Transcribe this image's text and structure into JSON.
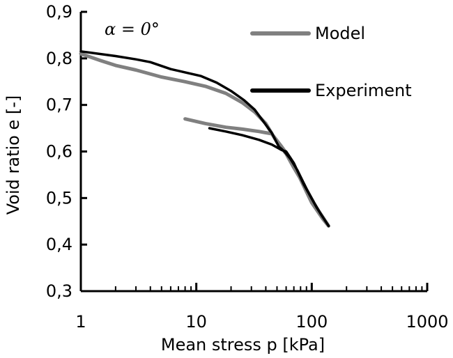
{
  "chart_data": {
    "type": "line",
    "xscale": "log",
    "xlim": [
      1,
      1000
    ],
    "ylim": [
      0.3,
      0.9
    ],
    "xlabel": "Mean stress p   [kPa]",
    "ylabel": "Void ratio  e    [-]",
    "x_ticks": [
      "1",
      "10",
      "100",
      "1000"
    ],
    "y_ticks": [
      "0,3",
      "0,4",
      "0,5",
      "0,6",
      "0,7",
      "0,8",
      "0,9"
    ],
    "annotation": "α = 0°",
    "legend_position": "top-right",
    "grid": false,
    "series": [
      {
        "name": "Model",
        "color": "#808080",
        "points": [
          [
            1,
            0.81
          ],
          [
            1.5,
            0.795
          ],
          [
            2,
            0.785
          ],
          [
            3,
            0.775
          ],
          [
            5,
            0.76
          ],
          [
            8,
            0.75
          ],
          [
            12,
            0.74
          ],
          [
            18,
            0.725
          ],
          [
            25,
            0.705
          ],
          [
            32,
            0.685
          ],
          [
            40,
            0.66
          ],
          [
            50,
            0.62
          ],
          [
            60,
            0.595
          ],
          [
            70,
            0.565
          ],
          [
            85,
            0.53
          ],
          [
            100,
            0.495
          ],
          [
            120,
            0.465
          ],
          [
            140,
            0.44
          ],
          [
            125,
            0.455
          ],
          [
            100,
            0.49
          ],
          [
            80,
            0.54
          ],
          [
            65,
            0.585
          ],
          [
            55,
            0.61
          ],
          [
            45,
            0.638
          ],
          [
            35,
            0.643
          ],
          [
            25,
            0.648
          ],
          [
            18,
            0.652
          ],
          [
            12,
            0.66
          ],
          [
            8,
            0.67
          ]
        ]
      },
      {
        "name": "Experiment",
        "color": "#000000",
        "points": [
          [
            1,
            0.815
          ],
          [
            2,
            0.805
          ],
          [
            3,
            0.798
          ],
          [
            4,
            0.792
          ],
          [
            6,
            0.777
          ],
          [
            8,
            0.77
          ],
          [
            11,
            0.762
          ],
          [
            15,
            0.748
          ],
          [
            20,
            0.73
          ],
          [
            26,
            0.71
          ],
          [
            32,
            0.69
          ],
          [
            38,
            0.665
          ],
          [
            45,
            0.64
          ],
          [
            52,
            0.61
          ],
          [
            58,
            0.6
          ],
          [
            65,
            0.585
          ],
          [
            75,
            0.56
          ],
          [
            90,
            0.52
          ],
          [
            105,
            0.49
          ],
          [
            120,
            0.465
          ],
          [
            140,
            0.44
          ],
          [
            110,
            0.48
          ],
          [
            85,
            0.53
          ],
          [
            70,
            0.575
          ],
          [
            60,
            0.6
          ],
          [
            55,
            0.603
          ],
          [
            45,
            0.615
          ],
          [
            35,
            0.625
          ],
          [
            25,
            0.635
          ],
          [
            18,
            0.643
          ],
          [
            13,
            0.65
          ]
        ]
      }
    ]
  }
}
